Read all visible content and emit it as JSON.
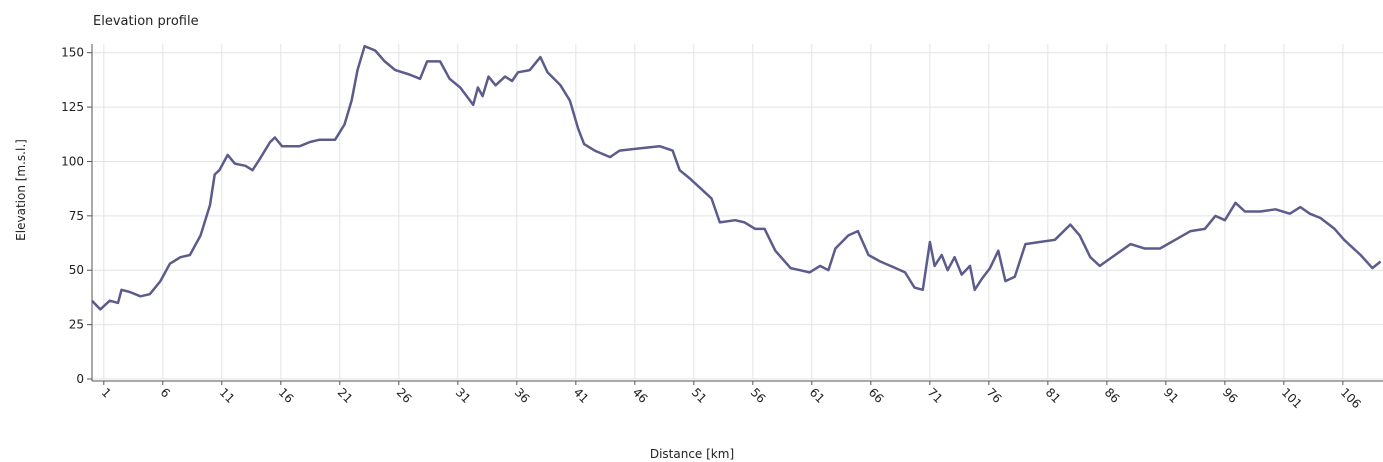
{
  "chart_data": {
    "type": "line",
    "title": "Elevation profile",
    "x_label": "Distance [km]",
    "y_label": "Elevation [m.s.l.]",
    "xlim": [
      0,
      109.4
    ],
    "ylim": [
      0,
      154
    ],
    "xticks": [
      1,
      6,
      11,
      16,
      21,
      26,
      31,
      36,
      41,
      46,
      51,
      56,
      61,
      66,
      71,
      76,
      81,
      86,
      91,
      96,
      101,
      106
    ],
    "yticks": [
      0,
      25,
      50,
      75,
      100,
      125,
      150
    ],
    "grid": true,
    "series": [
      {
        "color": "#5c5c8c",
        "x": [
          0,
          0.7,
          1.5,
          2.2,
          2.5,
          3.2,
          4.1,
          4.9,
          5.8,
          6.6,
          7.5,
          8.3,
          9.2,
          10.0,
          10.4,
          10.8,
          11.5,
          12.1,
          13.0,
          13.6,
          14.2,
          15.1,
          15.5,
          16.1,
          17.6,
          18.5,
          19.3,
          20.6,
          21.4,
          22.0,
          22.5,
          23.1,
          24.0,
          24.8,
          25.7,
          26.9,
          27.8,
          28.4,
          29.5,
          30.3,
          31.2,
          31.9,
          32.3,
          32.7,
          33.1,
          33.6,
          34.2,
          35.0,
          35.6,
          36.1,
          37.1,
          38.0,
          38.6,
          39.7,
          40.5,
          41.2,
          41.7,
          42.6,
          43.9,
          44.7,
          46.4,
          48.1,
          49.2,
          49.8,
          50.7,
          51.5,
          52.5,
          53.2,
          54.5,
          55.3,
          56.2,
          57.0,
          57.9,
          59.2,
          60.0,
          60.8,
          61.7,
          62.4,
          63.0,
          64.1,
          64.9,
          65.8,
          66.8,
          68.1,
          68.9,
          69.7,
          70.4,
          71.0,
          71.4,
          72.0,
          72.5,
          73.1,
          73.7,
          74.4,
          74.8,
          75.4,
          76.1,
          76.8,
          77.4,
          78.2,
          79.1,
          80.3,
          81.6,
          82.9,
          83.7,
          84.6,
          85.4,
          86.7,
          88.0,
          89.2,
          90.5,
          91.8,
          93.1,
          94.3,
          95.2,
          96.0,
          96.9,
          97.7,
          99.0,
          100.3,
          101.5,
          102.4,
          103.2,
          104.1,
          105.3,
          106.1,
          107.5,
          108.5,
          109.2
        ],
        "values": [
          36,
          32,
          36,
          35,
          41,
          40,
          38,
          39,
          45,
          53,
          56,
          57,
          66,
          80,
          94,
          96,
          103,
          99,
          98,
          96,
          101,
          109,
          111,
          107,
          107,
          109,
          110,
          110,
          117,
          128,
          142,
          153,
          151,
          146,
          142,
          140,
          138,
          146,
          146,
          138,
          134,
          129,
          126,
          134,
          130,
          139,
          135,
          139,
          137,
          141,
          142,
          148,
          141,
          135,
          128,
          115,
          108,
          105,
          102,
          105,
          106,
          107,
          105,
          96,
          92,
          88,
          83,
          72,
          73,
          72,
          69,
          69,
          59,
          51,
          50,
          49,
          52,
          50,
          60,
          66,
          68,
          57,
          54,
          51,
          49,
          42,
          41,
          63,
          52,
          57,
          50,
          56,
          48,
          52,
          41,
          46,
          51,
          59,
          45,
          47,
          62,
          63,
          64,
          71,
          66,
          56,
          52,
          57,
          62,
          60,
          60,
          64,
          68,
          69,
          75,
          73,
          81,
          77,
          77,
          78,
          76,
          79,
          76,
          74,
          69,
          64,
          57,
          51,
          54
        ]
      }
    ]
  }
}
